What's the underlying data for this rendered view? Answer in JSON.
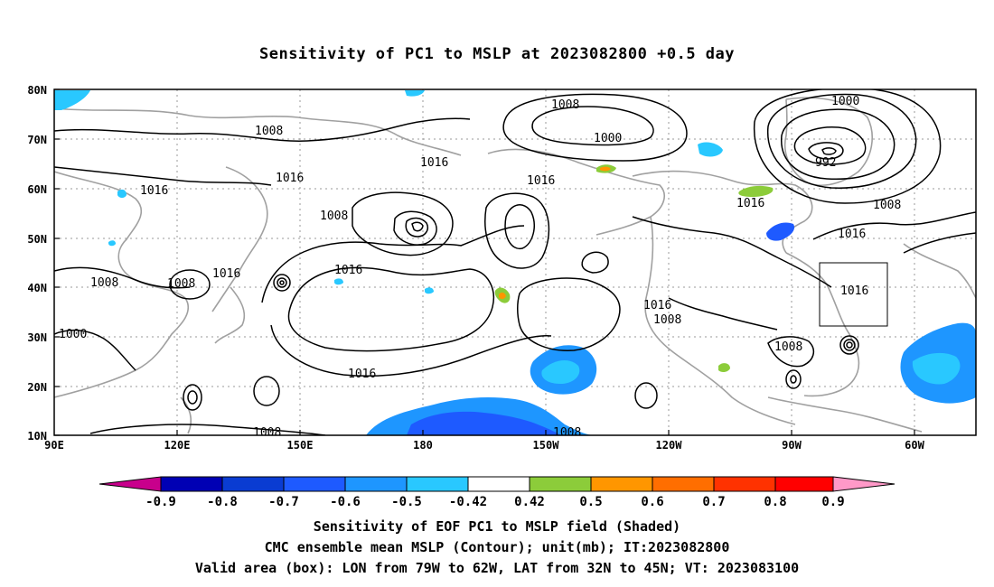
{
  "title": "Sensitivity of PC1 to MSLP at 2023082800 +0.5 day",
  "map": {
    "lat_labels": [
      "80N",
      "70N",
      "60N",
      "50N",
      "40N",
      "30N",
      "20N",
      "10N"
    ],
    "lon_labels": [
      "90E",
      "120E",
      "150E",
      "180",
      "150W",
      "120W",
      "90W",
      "60W"
    ],
    "contour_unit": "mb",
    "contour_labels": [
      "1008",
      "1016",
      "1008",
      "1000",
      "1016",
      "1016",
      "1008",
      "1000",
      "1008",
      "992",
      "1016",
      "1016",
      "1008",
      "1016",
      "1008",
      "1008",
      "1016",
      "1016",
      "1000",
      "1008",
      "1016",
      "1008",
      "1016",
      "1016",
      "1008",
      "1008"
    ],
    "valid_box_label": "1016",
    "colors": {
      "negative_shading": "#1e96ff",
      "negative_strong": "#0a3cd2",
      "weak_negative": "#29c8ff",
      "positive_shading": "#8ccc3a",
      "positive_strong": "#ff9600",
      "coastline": "#a0a0a0",
      "contour": "#000000"
    }
  },
  "colorbar": {
    "labels": [
      "-0.9",
      "-0.8",
      "-0.7",
      "-0.6",
      "-0.5",
      "-0.42",
      "0.42",
      "0.5",
      "0.6",
      "0.7",
      "0.8",
      "0.9"
    ],
    "colors": [
      "#c8008c",
      "#0000b4",
      "#0a3cd2",
      "#1e5aff",
      "#1e96ff",
      "#29c8ff",
      "#ffffff",
      "#8ccc3a",
      "#ff9600",
      "#ff6e00",
      "#ff3200",
      "#ff0000",
      "#ff99c8"
    ]
  },
  "footer": {
    "line1": "Sensitivity of EOF PC1 to MSLP field (Shaded)",
    "line2": "CMC ensemble mean MSLP (Contour); unit(mb); IT:2023082800",
    "line3": "Valid area (box): LON from 79W to 62W, LAT from 32N to 45N; VT: 2023083100"
  }
}
